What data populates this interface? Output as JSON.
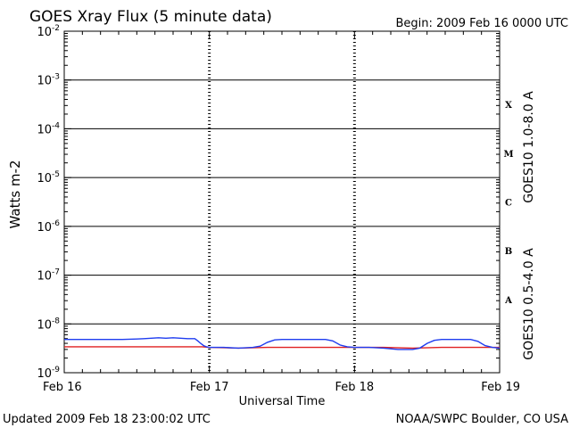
{
  "header": {
    "title": "GOES Xray Flux (5 minute data)",
    "begin": "Begin:  2009 Feb 16 0000 UTC"
  },
  "footer": {
    "updated": "Updated 2009 Feb 18 23:00:02 UTC",
    "credit": "NOAA/SWPC Boulder, CO USA"
  },
  "colors": {
    "long_channel": "#e02020",
    "short_channel": "#1e3cf0",
    "axis": "#000000"
  },
  "chart_data": {
    "type": "line",
    "title": "GOES Xray Flux (5 minute data)",
    "xlabel": "Universal Time",
    "ylabel": "Watts m-2",
    "yscale": "log",
    "ylim": [
      1e-09,
      0.01
    ],
    "xlim_days": [
      0,
      3
    ],
    "x_ticks": [
      {
        "label": "Feb 16",
        "day": 0
      },
      {
        "label": "Feb 17",
        "day": 1
      },
      {
        "label": "Feb 18",
        "day": 2
      },
      {
        "label": "Feb 19",
        "day": 3
      }
    ],
    "y_ticks": [
      {
        "base": "10",
        "exp": "-9",
        "value": 1e-09
      },
      {
        "base": "10",
        "exp": "-8",
        "value": 1e-08
      },
      {
        "base": "10",
        "exp": "-7",
        "value": 1e-07
      },
      {
        "base": "10",
        "exp": "-6",
        "value": 1e-06
      },
      {
        "base": "10",
        "exp": "-5",
        "value": 1e-05
      },
      {
        "base": "10",
        "exp": "-4",
        "value": 0.0001
      },
      {
        "base": "10",
        "exp": "-3",
        "value": 0.001
      },
      {
        "base": "10",
        "exp": "-2",
        "value": 0.01
      }
    ],
    "flare_classes": [
      {
        "label": "A",
        "value": 3.16e-08
      },
      {
        "label": "B",
        "value": 3.16e-07
      },
      {
        "label": "C",
        "value": 3.16e-06
      },
      {
        "label": "M",
        "value": 3.16e-05
      },
      {
        "label": "X",
        "value": 0.000316
      }
    ],
    "series": [
      {
        "name": "GOES10 1.0-8.0 A",
        "color": "#e02020",
        "x_days": [
          0,
          0.3,
          0.6,
          0.9,
          0.95,
          1.0,
          1.2,
          1.4,
          1.6,
          1.8,
          2.0,
          2.2,
          2.4,
          2.6,
          2.8,
          3.0
        ],
        "values": [
          3.4e-09,
          3.4e-09,
          3.4e-09,
          3.4e-09,
          3.4e-09,
          3.3e-09,
          3.2e-09,
          3.3e-09,
          3.3e-09,
          3.3e-09,
          3.3e-09,
          3.3e-09,
          3.2e-09,
          3.3e-09,
          3.3e-09,
          3.3e-09
        ]
      },
      {
        "name": "GOES10 0.5-4.0 A",
        "color": "#1e3cf0",
        "x_days": [
          0,
          0.1,
          0.2,
          0.3,
          0.4,
          0.5,
          0.55,
          0.6,
          0.65,
          0.7,
          0.75,
          0.8,
          0.85,
          0.9,
          0.92,
          0.94,
          0.96,
          0.98,
          1.0,
          1.1,
          1.2,
          1.3,
          1.35,
          1.4,
          1.45,
          1.5,
          1.6,
          1.7,
          1.8,
          1.85,
          1.9,
          1.95,
          2.0,
          2.1,
          2.2,
          2.3,
          2.4,
          2.45,
          2.5,
          2.55,
          2.6,
          2.7,
          2.8,
          2.85,
          2.9,
          2.95,
          3.0
        ],
        "values": [
          4.8e-09,
          4.8e-09,
          4.8e-09,
          4.8e-09,
          4.8e-09,
          4.9e-09,
          5e-09,
          5.1e-09,
          5.2e-09,
          5.1e-09,
          5.2e-09,
          5.1e-09,
          5e-09,
          5e-09,
          4.5e-09,
          4e-09,
          3.6e-09,
          3.4e-09,
          3.3e-09,
          3.3e-09,
          3.2e-09,
          3.3e-09,
          3.5e-09,
          4.2e-09,
          4.7e-09,
          4.8e-09,
          4.8e-09,
          4.8e-09,
          4.8e-09,
          4.5e-09,
          3.7e-09,
          3.4e-09,
          3.3e-09,
          3.3e-09,
          3.2e-09,
          3e-09,
          3e-09,
          3.2e-09,
          4e-09,
          4.6e-09,
          4.8e-09,
          4.8e-09,
          4.8e-09,
          4.4e-09,
          3.6e-09,
          3.3e-09,
          3.2e-09
        ]
      }
    ]
  }
}
